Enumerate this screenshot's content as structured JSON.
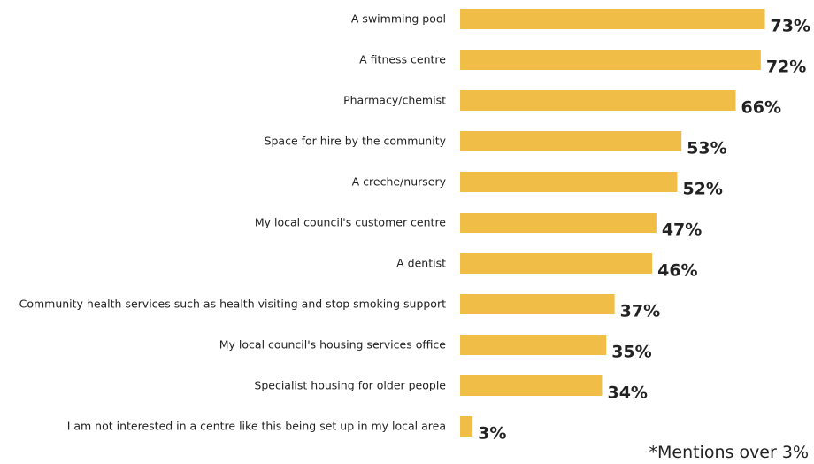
{
  "chart_data": {
    "type": "bar",
    "orientation": "horizontal",
    "categories": [
      "A swimming pool",
      "A fitness centre",
      "Pharmacy/chemist",
      "Space for hire by the community",
      "A creche/nursery",
      "My local council's customer centre",
      "A dentist",
      "Community health services such as health visiting and stop smoking support",
      "My local council's housing services office",
      "Specialist housing for older people",
      "I am not interested in a centre like this being set up in my local area"
    ],
    "values": [
      73,
      72,
      66,
      53,
      52,
      47,
      46,
      37,
      35,
      34,
      3
    ],
    "value_labels": [
      "73%",
      "72%",
      "66%",
      "53%",
      "52%",
      "47%",
      "46%",
      "37%",
      "35%",
      "34%",
      "3%"
    ],
    "unit": "%",
    "bar_color": "#F0BE47",
    "grid": false,
    "legend": "none"
  },
  "footnote": "*Mentions over 3%"
}
